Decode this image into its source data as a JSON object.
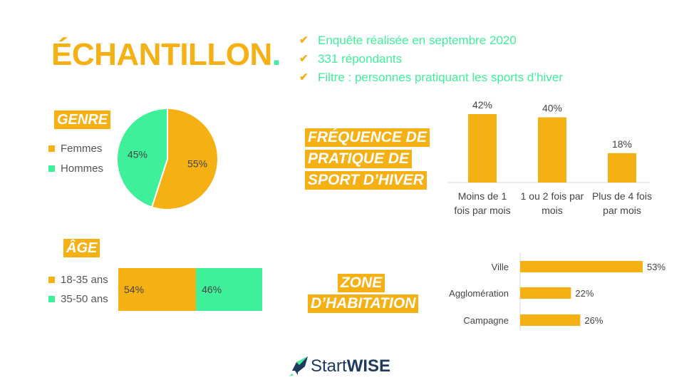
{
  "title": {
    "text": "ÉCHANTILLON",
    "dot": "."
  },
  "bullets": [
    "Enquête réalisée en septembre 2020",
    "331 répondants",
    "Filtre : personnes pratiquant les sports d’hiver"
  ],
  "colors": {
    "accent": "#f5b014",
    "secondary": "#3ef09a",
    "text": "#444444"
  },
  "genre": {
    "heading": "GENRE",
    "legend": [
      "Femmes",
      "Hommes"
    ]
  },
  "age": {
    "heading": "ÂGE",
    "legend": [
      "18-35 ans",
      "35-50 ans"
    ]
  },
  "frequence": {
    "heading_lines": [
      "FRÉQUENCE DE",
      "PRATIQUE DE",
      "SPORT D’HIVER"
    ]
  },
  "zone": {
    "heading_lines": [
      "ZONE",
      "D’HABITATION"
    ]
  },
  "logo": {
    "start": "Start",
    "wise": "WISE"
  },
  "chart_data": [
    {
      "id": "genre",
      "type": "pie",
      "labels": [
        "Femmes",
        "Hommes"
      ],
      "values": [
        55,
        45
      ],
      "data_labels": [
        "55%",
        "45%"
      ],
      "colors": [
        "#f5b014",
        "#3ef09a"
      ]
    },
    {
      "id": "age",
      "type": "bar",
      "orientation": "stacked-horizontal",
      "labels": [
        "18-35 ans",
        "35-50 ans"
      ],
      "values": [
        54,
        46
      ],
      "data_labels": [
        "54%",
        "46%"
      ],
      "colors": [
        "#f5b014",
        "#3ef09a"
      ]
    },
    {
      "id": "frequence",
      "type": "bar",
      "categories": [
        "Moins de 1 fois par mois",
        "1 ou 2 fois par mois",
        "Plus de 4 fois par mois"
      ],
      "category_lines": [
        [
          "Moins de 1",
          "fois par mois"
        ],
        [
          "1 ou 2 fois par",
          "mois"
        ],
        [
          "Plus de 4 fois",
          "par mois"
        ]
      ],
      "values": [
        42,
        40,
        18
      ],
      "data_labels": [
        "42%",
        "40%",
        "18%"
      ]
    },
    {
      "id": "zone",
      "type": "bar",
      "orientation": "horizontal",
      "categories": [
        "Ville",
        "Agglomération",
        "Campagne"
      ],
      "values": [
        53,
        22,
        26
      ],
      "data_labels": [
        "53%",
        "22%",
        "26%"
      ]
    }
  ]
}
